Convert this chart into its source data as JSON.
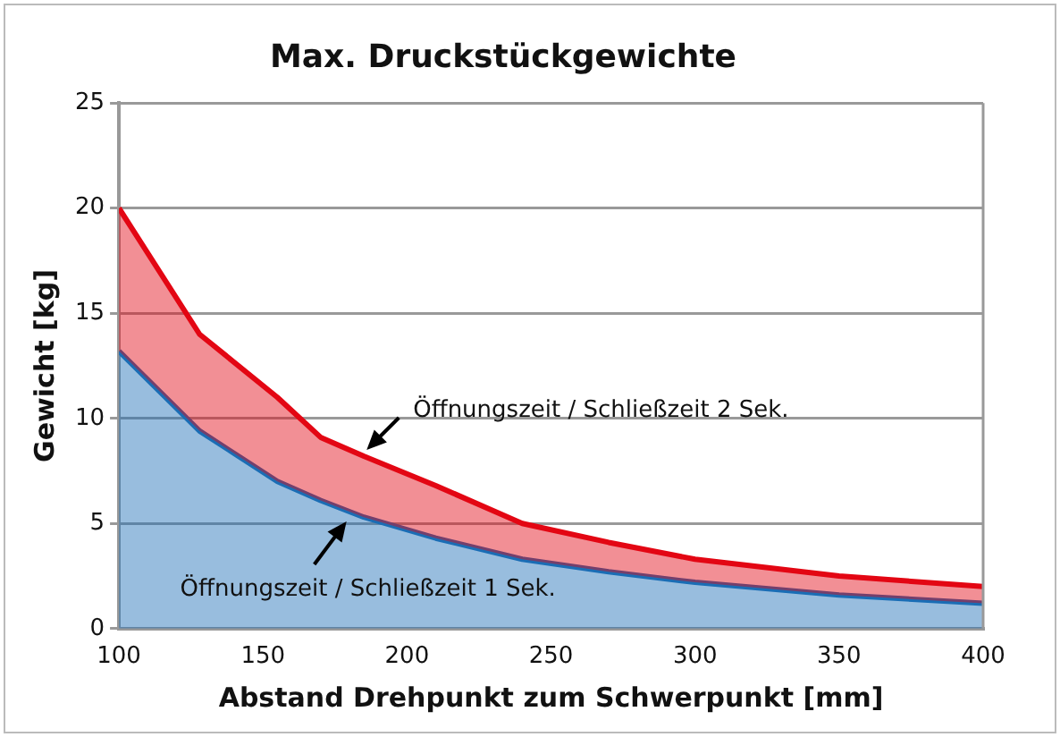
{
  "chart_data": {
    "type": "area",
    "title": "Max. Druckstückgewichte",
    "xlabel": "Abstand Drehpunkt zum Schwerpunkt [mm]",
    "ylabel": "Gewicht [kg]",
    "series": [
      {
        "color": "#e30613",
        "values": [
          20,
          14,
          11,
          9.1,
          8.2,
          6.8,
          5,
          4.1,
          3.3,
          2.5,
          2.0
        ]
      },
      {
        "color": "#1a6db5",
        "values": [
          13.2,
          9.4,
          7,
          6.1,
          5.3,
          4.3,
          3.3,
          2.7,
          2.2,
          1.6,
          1.2
        ]
      }
    ],
    "x": [
      100,
      128,
      155,
      170,
      185,
      210,
      240,
      270,
      300,
      350,
      400
    ],
    "xlim": [
      100,
      400
    ],
    "xticks": [
      100,
      150,
      200,
      250,
      300,
      350,
      400
    ],
    "ylim": [
      0,
      25
    ],
    "yticks": [
      0,
      5,
      10,
      15,
      20,
      25
    ],
    "grid": "y",
    "legend": false,
    "annotations": [
      {
        "text": "Öffnungszeit / Schließzeit 2 Sek.",
        "x": 186,
        "y": 8.5
      },
      {
        "text": "Öffnungszeit / Schließzeit 1 Sek.",
        "x": 179,
        "y": 5.1
      }
    ]
  }
}
